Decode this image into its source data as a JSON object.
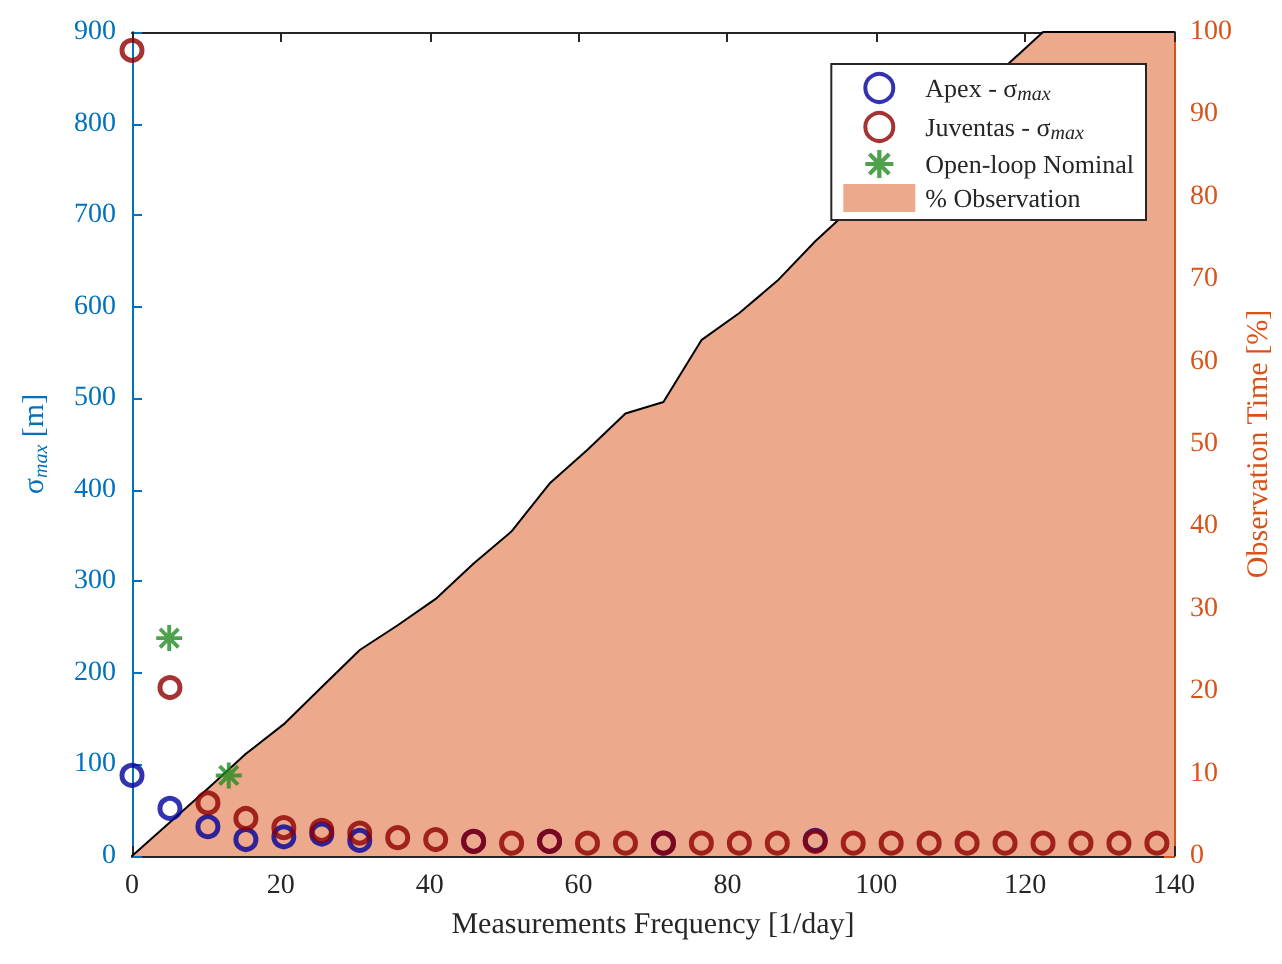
{
  "chart_data": {
    "type": "scatter",
    "xlabel": "Measurements Frequency [1/day]",
    "ylabel": "σ$_{max}$ [m]",
    "y2label": "Observation Time [%]",
    "xlim": [
      0,
      140
    ],
    "xticks": [
      0,
      20,
      40,
      60,
      80,
      100,
      120,
      140
    ],
    "ylim": [
      0,
      900
    ],
    "yticks": [
      0,
      100,
      200,
      300,
      400,
      500,
      600,
      700,
      800,
      900
    ],
    "y2lim": [
      0,
      100
    ],
    "y2ticks": [
      0,
      10,
      20,
      30,
      40,
      50,
      60,
      70,
      80,
      90,
      100
    ],
    "legend": "top right",
    "x": [
      0,
      5.1,
      10.2,
      15.3,
      20.4,
      25.5,
      30.6,
      35.7,
      40.8,
      45.9,
      51,
      56.1,
      61.2,
      66.3,
      71.4,
      76.5,
      81.6,
      86.7,
      91.8,
      96.9,
      102,
      107.1,
      112.2,
      117.3,
      122.4,
      127.5,
      132.6,
      137.7
    ],
    "series": [
      {
        "name": "Apex - σ$_{max}$",
        "color": "#00009c",
        "marker": "circle",
        "values": [
          88,
          52,
          32,
          18,
          21,
          24,
          17,
          null,
          null,
          16,
          null,
          16,
          null,
          null,
          14,
          null,
          null,
          null,
          17,
          null,
          null,
          null,
          null,
          null,
          null,
          null,
          null,
          null
        ]
      },
      {
        "name": "Juventas - σ$_{max}$",
        "color": "#8f0000",
        "marker": "circle",
        "values": [
          880,
          184,
          58,
          41,
          31,
          28,
          25,
          20,
          18,
          16,
          14,
          16,
          14,
          14,
          14,
          14,
          14,
          14,
          16,
          14,
          14,
          14,
          14,
          14,
          14,
          14,
          14,
          14
        ]
      },
      {
        "name": "Open-loop Nominal",
        "color": "#228b22",
        "marker": "star",
        "x": [
          5,
          13
        ],
        "values": [
          238,
          88
        ]
      },
      {
        "name": "% Observation",
        "type": "area",
        "axis": "y2",
        "color": "#eca98c",
        "x": [
          0,
          5.1,
          10.2,
          15.3,
          20.4,
          25.5,
          30.6,
          35.7,
          40.8,
          45.9,
          51,
          56.1,
          61.2,
          66.3,
          71.4,
          76.5,
          81.6,
          86.7,
          91.8,
          122.4,
          127.5,
          132.6,
          137.7,
          140
        ],
        "values": [
          0,
          4.1,
          8.2,
          12.4,
          16,
          20.5,
          25,
          28,
          31.2,
          35.5,
          39.4,
          45.2,
          49.3,
          53.7,
          55.1,
          62.6,
          65.9,
          69.8,
          74.6,
          100,
          100,
          100,
          100,
          100
        ]
      }
    ]
  }
}
